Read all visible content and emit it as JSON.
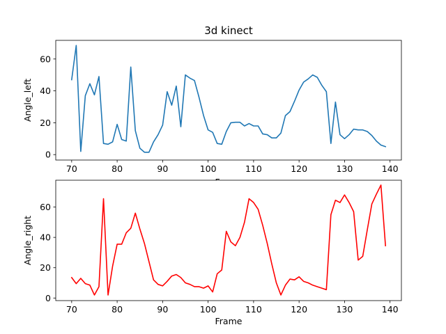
{
  "chart_data": [
    {
      "type": "line",
      "title": "3d kinect",
      "xlabel": "Frame",
      "ylabel": "Angle_left",
      "xlim": [
        66.5,
        142.5
      ],
      "ylim": [
        -3.4,
        71.7
      ],
      "xticks": [
        70,
        80,
        90,
        100,
        110,
        120,
        130,
        140
      ],
      "yticks": [
        0,
        20,
        40,
        60
      ],
      "color": "#1f77b4",
      "x": [
        70,
        71,
        72,
        73,
        74,
        75,
        76,
        77,
        78,
        79,
        80,
        81,
        82,
        83,
        84,
        85,
        86,
        87,
        88,
        89,
        90,
        91,
        92,
        93,
        94,
        95,
        96,
        97,
        98,
        99,
        100,
        101,
        102,
        103,
        104,
        105,
        106,
        107,
        108,
        109,
        110,
        111,
        112,
        113,
        114,
        115,
        116,
        117,
        118,
        119,
        120,
        121,
        122,
        123,
        124,
        125,
        126,
        127,
        128,
        129,
        130,
        131,
        132,
        133,
        134,
        135,
        136,
        137,
        138,
        139
      ],
      "y": [
        47,
        68.5,
        2,
        37,
        44.5,
        37.5,
        49,
        7,
        6.5,
        8,
        19,
        9.5,
        8.5,
        55,
        15,
        4,
        1.5,
        1.5,
        8,
        12.5,
        18.5,
        39.5,
        31,
        43,
        17.5,
        50,
        48,
        46.5,
        36,
        24.5,
        15.5,
        14,
        7,
        6.5,
        14.5,
        20,
        20.3,
        20.3,
        18,
        19.5,
        18,
        18,
        13,
        12.5,
        10.5,
        10.5,
        13.5,
        24.5,
        27,
        33.5,
        40.5,
        45.5,
        47.5,
        50,
        48.5,
        43.5,
        39.5,
        7,
        33,
        12.5,
        10,
        12.5,
        16,
        15.5,
        15.5,
        14.5,
        12,
        8.5,
        6,
        5
      ]
    },
    {
      "type": "line",
      "title": "",
      "xlabel": "Frame",
      "ylabel": "Angle_right",
      "xlim": [
        66.5,
        142.5
      ],
      "ylim": [
        -1.7,
        77.7
      ],
      "xticks": [
        70,
        80,
        90,
        100,
        110,
        120,
        130,
        140
      ],
      "yticks": [
        0,
        20,
        40,
        60
      ],
      "color": "#ff0000",
      "x": [
        70,
        71,
        72,
        73,
        74,
        75,
        76,
        77,
        78,
        79,
        80,
        81,
        82,
        83,
        84,
        85,
        86,
        87,
        88,
        89,
        90,
        91,
        92,
        93,
        94,
        95,
        96,
        97,
        98,
        99,
        100,
        101,
        102,
        103,
        104,
        105,
        106,
        107,
        108,
        109,
        110,
        111,
        112,
        113,
        114,
        115,
        116,
        117,
        118,
        119,
        120,
        121,
        122,
        123,
        124,
        125,
        126,
        127,
        128,
        129,
        130,
        131,
        132,
        133,
        134,
        135,
        136,
        137,
        138,
        139
      ],
      "y": [
        13.5,
        9.5,
        13,
        9.5,
        8.5,
        2,
        7.5,
        65.5,
        2,
        21,
        35.5,
        35.5,
        43,
        46,
        56,
        45.5,
        36,
        24,
        12,
        9,
        8,
        11,
        14.5,
        15.5,
        13.5,
        10,
        9,
        7.5,
        7.5,
        6.5,
        8,
        4,
        16,
        18.5,
        44,
        37,
        34.5,
        40,
        50,
        65.5,
        63,
        58.5,
        48,
        36,
        22.5,
        10,
        2,
        8.5,
        12.5,
        12,
        14,
        11,
        10,
        8.5,
        7.5,
        6.5,
        5.5,
        55,
        64.5,
        63,
        68,
        63,
        57,
        25,
        27.5,
        45,
        62,
        68.5,
        74.5,
        34.5
      ]
    }
  ]
}
